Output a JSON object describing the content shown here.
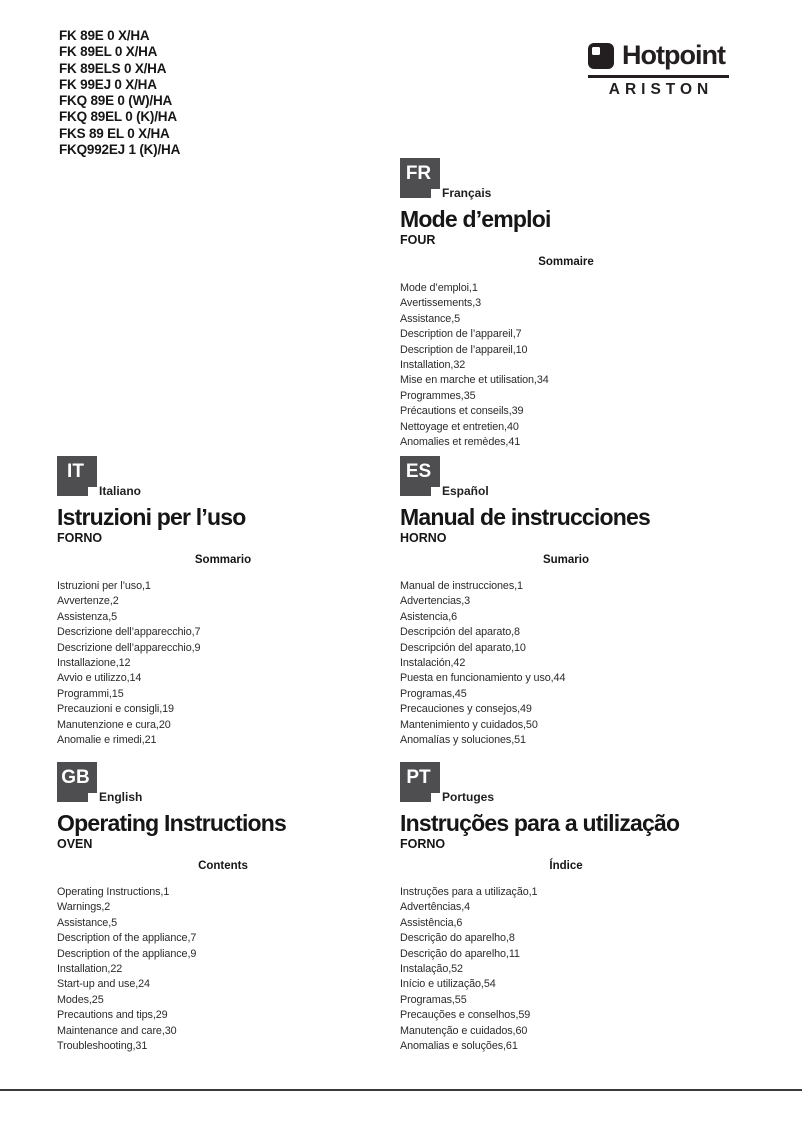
{
  "models": [
    "FK 89E 0 X/HA",
    "FK 89EL 0 X/HA",
    "FK 89ELS 0 X/HA",
    "FK 99EJ 0 X/HA",
    "FKQ 89E 0 (W)/HA",
    "FKQ 89EL 0 (K)/HA",
    "FKS 89 EL 0 X/HA",
    "FKQ992EJ 1 (K)/HA"
  ],
  "brand": {
    "name": "Hotpoint",
    "subname": "ARISTON",
    "icon": "hotpoint-square-icon"
  },
  "colors": {
    "badge_bg": "#4e4e50",
    "badge_text": "#ffffff",
    "logo_black": "#231f20",
    "rule": "#3a3a3a"
  },
  "sections": {
    "fr": {
      "code": "FR",
      "language": "Français",
      "title": "Mode d’emploi",
      "product": "FOUR",
      "contents_heading": "Sommaire",
      "items": [
        "Mode d’emploi,1",
        "Avertissements,3",
        "Assistance,5",
        "Description de l’appareil,7",
        "Description de l’appareil,10",
        "Installation,32",
        "Mise en marche et utilisation,34",
        "Programmes,35",
        "Précautions et conseils,39",
        "Nettoyage et entretien,40",
        "Anomalies et remèdes,41"
      ]
    },
    "it": {
      "code": "IT",
      "language": "Italiano",
      "title": "Istruzioni per l’uso",
      "product": "FORNO",
      "contents_heading": "Sommario",
      "items": [
        "Istruzioni per l’uso,1",
        "Avvertenze,2",
        "Assistenza,5",
        "Descrizione dell’apparecchio,7",
        "Descrizione dell’apparecchio,9",
        "Installazione,12",
        "Avvio e utilizzo,14",
        "Programmi,15",
        "Precauzioni e consigli,19",
        "Manutenzione e cura,20",
        "Anomalie e rimedi,21"
      ]
    },
    "es": {
      "code": "ES",
      "language": "Español",
      "title": "Manual de instrucciones",
      "product": "HORNO",
      "contents_heading": "Sumario",
      "items": [
        "Manual de instrucciones,1",
        "Advertencias,3",
        "Asistencia,6",
        "Descripción del aparato,8",
        "Descripción del aparato,10",
        "Instalación,42",
        "Puesta en funcionamiento y uso,44",
        "Programas,45",
        "Precauciones y consejos,49",
        "Mantenimiento y cuidados,50",
        "Anomalías y soluciones,51"
      ]
    },
    "gb": {
      "code": "GB",
      "language": "English",
      "title": "Operating Instructions",
      "product": "OVEN",
      "contents_heading": "Contents",
      "items": [
        "Operating Instructions,1",
        "Warnings,2",
        "Assistance,5",
        "Description of the appliance,7",
        "Description of the appliance,9",
        "Installation,22",
        "Start-up and use,24",
        "Modes,25",
        "Precautions and tips,29",
        "Maintenance and care,30",
        "Troubleshooting,31"
      ]
    },
    "pt": {
      "code": "PT",
      "language": "Portuges",
      "title": "Instruções para a utilização",
      "product": "FORNO",
      "contents_heading": "Índice",
      "items": [
        "Instruções para a utilização,1",
        "Advertências,4",
        "Assistência,6",
        "Descrição do aparelho,8",
        "Descrição do aparelho,11",
        "Instalação,52",
        "Início e utilização,54",
        "Programas,55",
        "Precauções e conselhos,59",
        "Manutenção e cuidados,60",
        "Anomalias e soluções,61"
      ]
    }
  }
}
